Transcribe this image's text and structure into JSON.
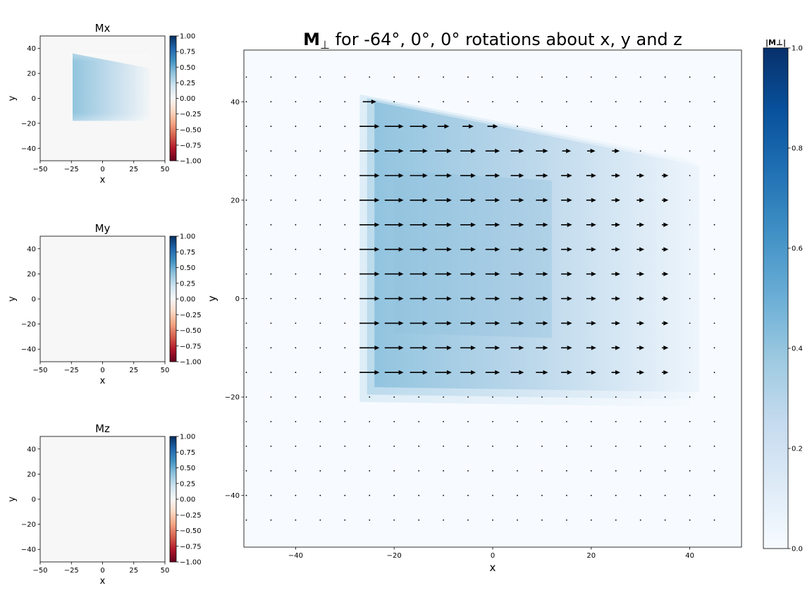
{
  "chart_data": [
    {
      "type": "heatmap",
      "title": "Mx",
      "xlabel": "x",
      "ylabel": "y",
      "xlim": [
        -50,
        50
      ],
      "ylim": [
        -50,
        50
      ],
      "xticks": [
        -50,
        -25,
        0,
        25,
        50
      ],
      "yticks": [
        -40,
        -20,
        0,
        20,
        40
      ],
      "colormap": "RdBu",
      "colorbar": {
        "range": [
          -1,
          1
        ],
        "ticks": [
          "1.00",
          "0.75",
          "0.50",
          "0.25",
          "0.00",
          "-0.25",
          "-0.50",
          "-0.75",
          "-1.00"
        ]
      },
      "region": {
        "x_range": [
          -24,
          38
        ],
        "left_edge_y": [
          -18,
          36
        ],
        "right_edge_y": [
          -18,
          24
        ],
        "value_left": 0.45,
        "value_right": 0.0
      }
    },
    {
      "type": "heatmap",
      "title": "My",
      "xlabel": "x",
      "ylabel": "y",
      "xlim": [
        -50,
        50
      ],
      "ylim": [
        -50,
        50
      ],
      "xticks": [
        -50,
        -25,
        0,
        25,
        50
      ],
      "yticks": [
        -40,
        -20,
        0,
        20,
        40
      ],
      "colormap": "RdBu",
      "colorbar": {
        "range": [
          -1,
          1
        ],
        "ticks": [
          "1.00",
          "0.75",
          "0.50",
          "0.25",
          "0.00",
          "-0.25",
          "-0.50",
          "-0.75",
          "-1.00"
        ]
      },
      "value": 0.0
    },
    {
      "type": "heatmap",
      "title": "Mz",
      "xlabel": "x",
      "ylabel": "y",
      "xlim": [
        -50,
        50
      ],
      "ylim": [
        -50,
        50
      ],
      "xticks": [
        -50,
        -25,
        0,
        25,
        50
      ],
      "yticks": [
        -40,
        -20,
        0,
        20,
        40
      ],
      "colormap": "RdBu",
      "colorbar": {
        "range": [
          -1,
          1
        ],
        "ticks": [
          "1.00",
          "0.75",
          "0.50",
          "0.25",
          "0.00",
          "-0.25",
          "-0.50",
          "-0.75",
          "-1.00"
        ]
      },
      "value": 0.0
    },
    {
      "type": "heatmap",
      "title_bold": "M",
      "title_sub": "⊥",
      "title_rest": " for -64°, 0°, 0° rotations about x, y and z",
      "xlabel": "x",
      "ylabel": "y",
      "xlim": [
        -50.5,
        50.5
      ],
      "ylim": [
        -50.5,
        50.5
      ],
      "xticks": [
        -40,
        -20,
        0,
        20,
        40
      ],
      "yticks": [
        -40,
        -20,
        0,
        20,
        40
      ],
      "colormap": "Blues",
      "colorbar": {
        "label": "|M⊥|",
        "range": [
          0,
          1
        ],
        "ticks": [
          "1.0",
          "0.8",
          "0.6",
          "0.4",
          "0.2",
          "0.0"
        ]
      },
      "region": {
        "x_range": [
          -24,
          42
        ],
        "left_edge_y": [
          -18,
          40
        ],
        "right_edge_y": [
          -19,
          27
        ],
        "value_left": 0.42,
        "value_right": 0.04
      },
      "quiver": {
        "x_start": -50,
        "x_step": 5,
        "count_x": 20,
        "y_start": -45,
        "y_step": 5,
        "count_y": 19,
        "direction": "+x",
        "magnitude_max": 0.45
      }
    }
  ]
}
